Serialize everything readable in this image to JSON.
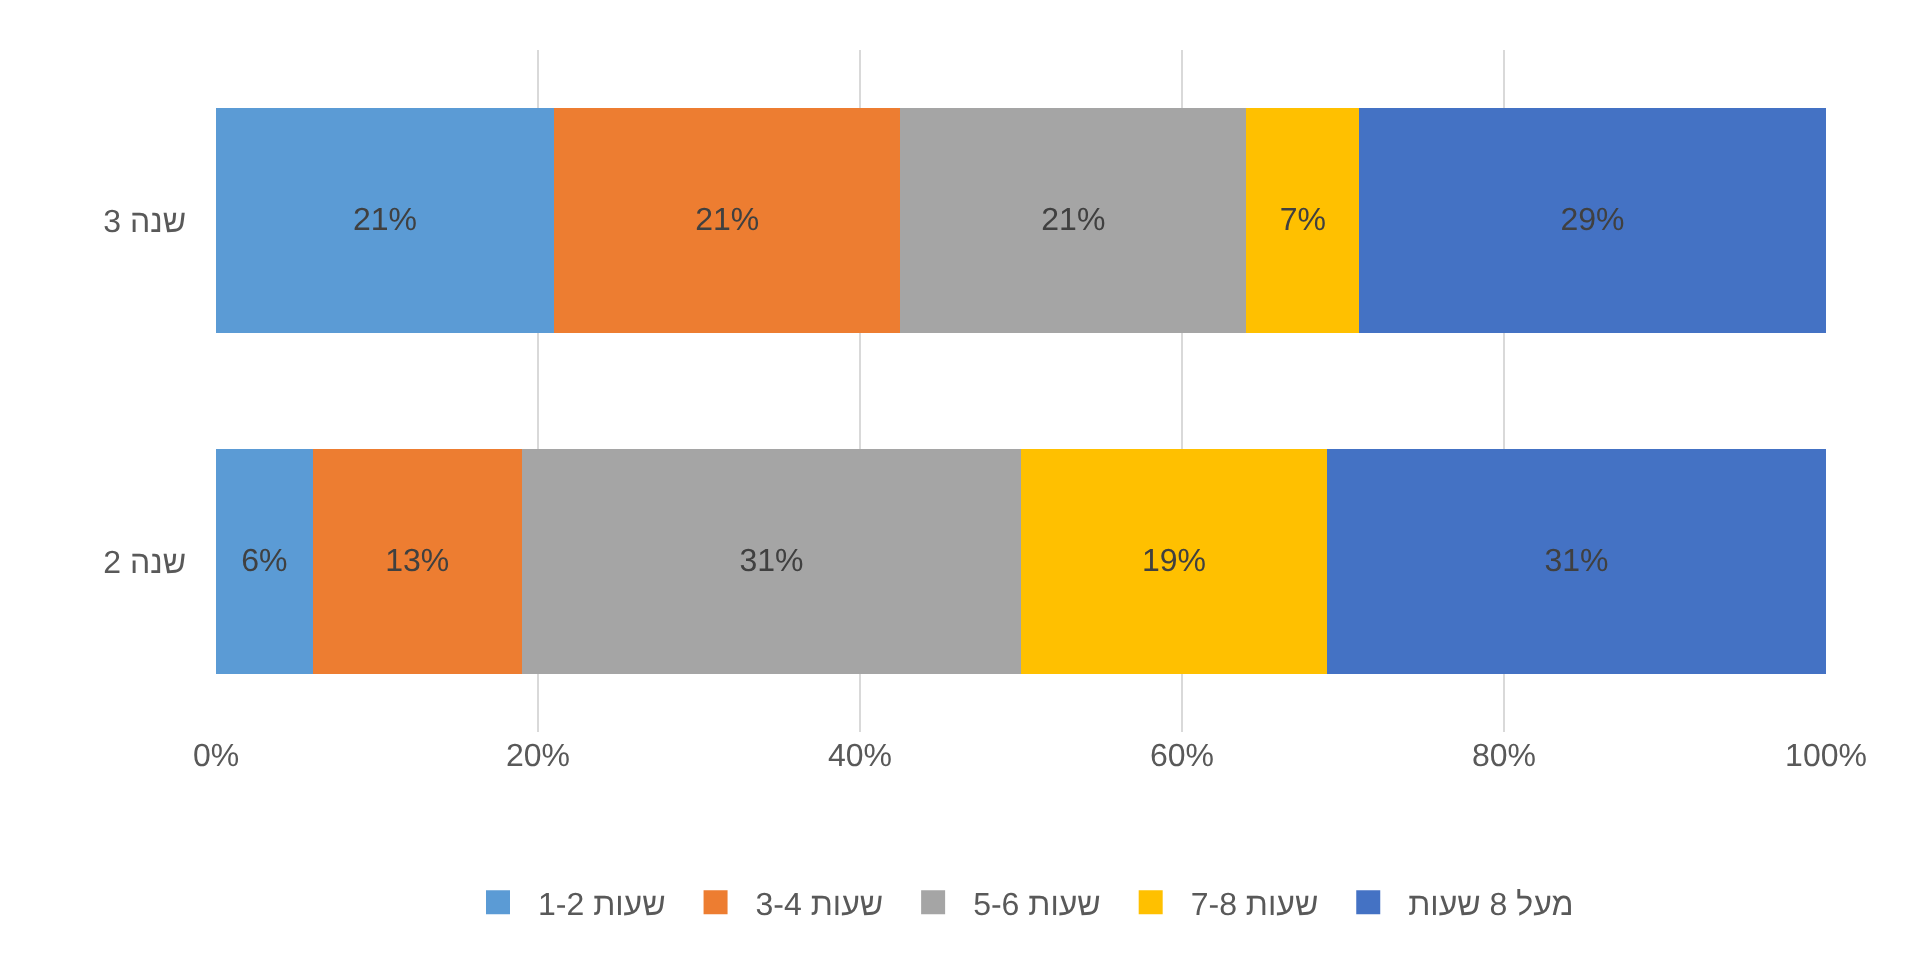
{
  "chart_data": {
    "type": "bar",
    "orientation": "horizontal",
    "stacked": true,
    "categories": [
      "שנה 3",
      "שנה 2"
    ],
    "series": [
      {
        "name": "1-2 שעות",
        "color": "#5b9bd5",
        "values": [
          21,
          6
        ],
        "value_labels": [
          "21%",
          "6%"
        ]
      },
      {
        "name": "3-4 שעות",
        "color": "#ed7d31",
        "values": [
          21.5,
          13
        ],
        "value_labels": [
          "21%",
          "13%"
        ]
      },
      {
        "name": "5-6 שעות",
        "color": "#a5a5a5",
        "values": [
          21.5,
          31
        ],
        "value_labels": [
          "21%",
          "31%"
        ]
      },
      {
        "name": "7-8 שעות",
        "color": "#ffc000",
        "values": [
          7,
          19
        ],
        "value_labels": [
          "7%",
          "19%"
        ]
      },
      {
        "name": "מעל 8 שעות",
        "color": "#4472c4",
        "values": [
          29,
          31
        ],
        "value_labels": [
          "29%",
          "31%"
        ]
      }
    ],
    "xlim": [
      0,
      100
    ],
    "xticks": [
      {
        "value": 0,
        "label": "0%"
      },
      {
        "value": 20,
        "label": "20%"
      },
      {
        "value": 40,
        "label": "40%"
      },
      {
        "value": 60,
        "label": "60%"
      },
      {
        "value": 80,
        "label": "80%"
      },
      {
        "value": 100,
        "label": "100%"
      }
    ],
    "grid": "x",
    "legend": "bottom"
  }
}
